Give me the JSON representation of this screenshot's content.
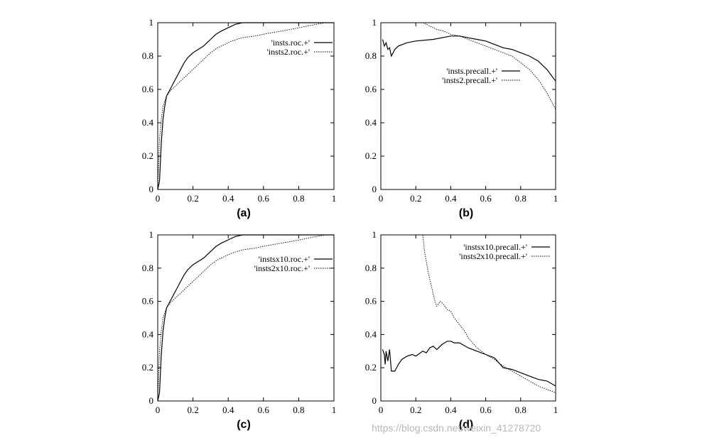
{
  "figure": {
    "watermark": "https://blog.csdn.net/weixin_41278720"
  },
  "chart_data": [
    {
      "type": "line",
      "panel": "(a)",
      "xlim": [
        0,
        1
      ],
      "ylim": [
        0,
        1
      ],
      "xticks": [
        "0",
        "0.2",
        "0.4",
        "0.6",
        "0.8",
        "1"
      ],
      "yticks": [
        "0",
        "0.2",
        "0.4",
        "0.6",
        "0.8",
        "1"
      ],
      "legend_position": "top-right",
      "series": [
        {
          "name": "'insts.roc.+'",
          "style": "solid",
          "x": [
            0,
            0.01,
            0.02,
            0.03,
            0.04,
            0.05,
            0.07,
            0.09,
            0.11,
            0.13,
            0.15,
            0.17,
            0.2,
            0.23,
            0.26,
            0.28,
            0.3,
            0.33,
            0.36,
            0.4,
            0.44,
            0.48,
            0.52,
            1.0
          ],
          "y": [
            0,
            0.05,
            0.28,
            0.42,
            0.5,
            0.56,
            0.6,
            0.64,
            0.68,
            0.72,
            0.76,
            0.79,
            0.82,
            0.84,
            0.86,
            0.88,
            0.9,
            0.93,
            0.95,
            0.97,
            0.99,
            1.0,
            1.0,
            1.0
          ]
        },
        {
          "name": "'insts2.roc.+'",
          "style": "dotted",
          "x": [
            0,
            0.01,
            0.02,
            0.03,
            0.05,
            0.07,
            0.09,
            0.12,
            0.15,
            0.18,
            0.21,
            0.24,
            0.27,
            0.3,
            0.34,
            0.38,
            0.42,
            0.48,
            0.55,
            0.62,
            0.7,
            0.78,
            0.85,
            0.9,
            0.95,
            1.0
          ],
          "y": [
            0,
            0.3,
            0.42,
            0.5,
            0.56,
            0.59,
            0.61,
            0.64,
            0.67,
            0.7,
            0.73,
            0.76,
            0.79,
            0.82,
            0.85,
            0.87,
            0.89,
            0.91,
            0.92,
            0.935,
            0.95,
            0.965,
            0.98,
            0.99,
            1.0,
            1.0
          ]
        }
      ]
    },
    {
      "type": "line",
      "panel": "(b)",
      "xlim": [
        0,
        1
      ],
      "ylim": [
        0,
        1
      ],
      "xticks": [
        "0",
        "0.2",
        "0.4",
        "0.6",
        "0.8",
        "1"
      ],
      "yticks": [
        "0",
        "0.2",
        "0.4",
        "0.6",
        "0.8",
        "1"
      ],
      "legend_position": "center-right",
      "series": [
        {
          "name": "'insts.precall.+'",
          "style": "solid",
          "x": [
            0.01,
            0.02,
            0.03,
            0.04,
            0.05,
            0.06,
            0.08,
            0.1,
            0.15,
            0.2,
            0.3,
            0.4,
            0.45,
            0.5,
            0.55,
            0.6,
            0.65,
            0.7,
            0.75,
            0.8,
            0.85,
            0.9,
            0.95,
            1.0
          ],
          "y": [
            0.9,
            0.86,
            0.88,
            0.84,
            0.85,
            0.8,
            0.84,
            0.86,
            0.88,
            0.89,
            0.9,
            0.92,
            0.92,
            0.91,
            0.9,
            0.89,
            0.87,
            0.85,
            0.84,
            0.82,
            0.8,
            0.77,
            0.72,
            0.65
          ]
        },
        {
          "name": "'insts2.precall.+'",
          "style": "dotted",
          "x": [
            0.24,
            0.28,
            0.32,
            0.36,
            0.4,
            0.45,
            0.5,
            0.55,
            0.6,
            0.65,
            0.7,
            0.75,
            0.8,
            0.85,
            0.9,
            0.95,
            1.0
          ],
          "y": [
            1.0,
            0.98,
            0.96,
            0.95,
            0.93,
            0.92,
            0.9,
            0.88,
            0.86,
            0.84,
            0.82,
            0.8,
            0.76,
            0.72,
            0.66,
            0.58,
            0.48
          ]
        }
      ]
    },
    {
      "type": "line",
      "panel": "(c)",
      "xlim": [
        0,
        1
      ],
      "ylim": [
        0,
        1
      ],
      "xticks": [
        "0",
        "0.2",
        "0.4",
        "0.6",
        "0.8",
        "1"
      ],
      "yticks": [
        "0",
        "0.2",
        "0.4",
        "0.6",
        "0.8",
        "1"
      ],
      "legend_position": "top-right",
      "series": [
        {
          "name": "'instsx10.roc.+'",
          "style": "solid",
          "x": [
            0,
            0.01,
            0.02,
            0.03,
            0.04,
            0.05,
            0.07,
            0.09,
            0.11,
            0.13,
            0.15,
            0.17,
            0.2,
            0.23,
            0.26,
            0.28,
            0.3,
            0.33,
            0.36,
            0.4,
            0.44,
            0.48,
            0.52,
            1.0
          ],
          "y": [
            0,
            0.05,
            0.28,
            0.42,
            0.5,
            0.56,
            0.6,
            0.64,
            0.68,
            0.72,
            0.76,
            0.79,
            0.82,
            0.84,
            0.86,
            0.88,
            0.9,
            0.93,
            0.95,
            0.97,
            0.99,
            1.0,
            1.0,
            1.0
          ]
        },
        {
          "name": "'insts2x10.roc.+'",
          "style": "dotted",
          "x": [
            0,
            0.01,
            0.02,
            0.03,
            0.05,
            0.07,
            0.09,
            0.12,
            0.15,
            0.18,
            0.21,
            0.24,
            0.27,
            0.3,
            0.34,
            0.38,
            0.42,
            0.48,
            0.55,
            0.62,
            0.7,
            0.78,
            0.85,
            0.9,
            0.95,
            1.0
          ],
          "y": [
            0,
            0.3,
            0.42,
            0.5,
            0.56,
            0.59,
            0.61,
            0.64,
            0.67,
            0.7,
            0.73,
            0.76,
            0.79,
            0.82,
            0.85,
            0.87,
            0.89,
            0.91,
            0.92,
            0.935,
            0.95,
            0.965,
            0.98,
            0.99,
            1.0,
            1.0
          ]
        }
      ]
    },
    {
      "type": "line",
      "panel": "(d)",
      "xlim": [
        0,
        1
      ],
      "ylim": [
        0,
        1
      ],
      "xticks": [
        "0",
        "0.2",
        "0.4",
        "0.6",
        "0.8",
        "1"
      ],
      "yticks": [
        "0",
        "0.2",
        "0.4",
        "0.6",
        "0.8",
        "1"
      ],
      "legend_position": "top-right",
      "series": [
        {
          "name": "'instsx10.precall.+'",
          "style": "solid",
          "x": [
            0.01,
            0.02,
            0.025,
            0.03,
            0.04,
            0.05,
            0.06,
            0.08,
            0.1,
            0.12,
            0.15,
            0.18,
            0.2,
            0.24,
            0.26,
            0.28,
            0.3,
            0.32,
            0.35,
            0.38,
            0.4,
            0.42,
            0.45,
            0.5,
            0.55,
            0.6,
            0.65,
            0.7,
            0.75,
            0.8,
            0.85,
            0.9,
            0.95,
            1.0
          ],
          "y": [
            0.31,
            0.28,
            0.22,
            0.3,
            0.24,
            0.31,
            0.18,
            0.18,
            0.22,
            0.25,
            0.27,
            0.28,
            0.27,
            0.3,
            0.29,
            0.32,
            0.33,
            0.31,
            0.34,
            0.36,
            0.36,
            0.35,
            0.35,
            0.32,
            0.3,
            0.28,
            0.26,
            0.2,
            0.19,
            0.17,
            0.15,
            0.13,
            0.12,
            0.09
          ]
        },
        {
          "name": "'insts2x10.precall.+'",
          "style": "dotted",
          "x": [
            0.24,
            0.25,
            0.26,
            0.27,
            0.28,
            0.29,
            0.3,
            0.31,
            0.32,
            0.34,
            0.36,
            0.38,
            0.4,
            0.42,
            0.45,
            0.48,
            0.5,
            0.55,
            0.6,
            0.65,
            0.7,
            0.75,
            0.8,
            0.85,
            0.9,
            0.95,
            1.0
          ],
          "y": [
            1.0,
            0.9,
            0.84,
            0.78,
            0.73,
            0.69,
            0.64,
            0.6,
            0.57,
            0.6,
            0.58,
            0.55,
            0.54,
            0.5,
            0.46,
            0.42,
            0.38,
            0.32,
            0.28,
            0.25,
            0.21,
            0.18,
            0.15,
            0.12,
            0.09,
            0.07,
            0.05
          ]
        }
      ]
    }
  ]
}
